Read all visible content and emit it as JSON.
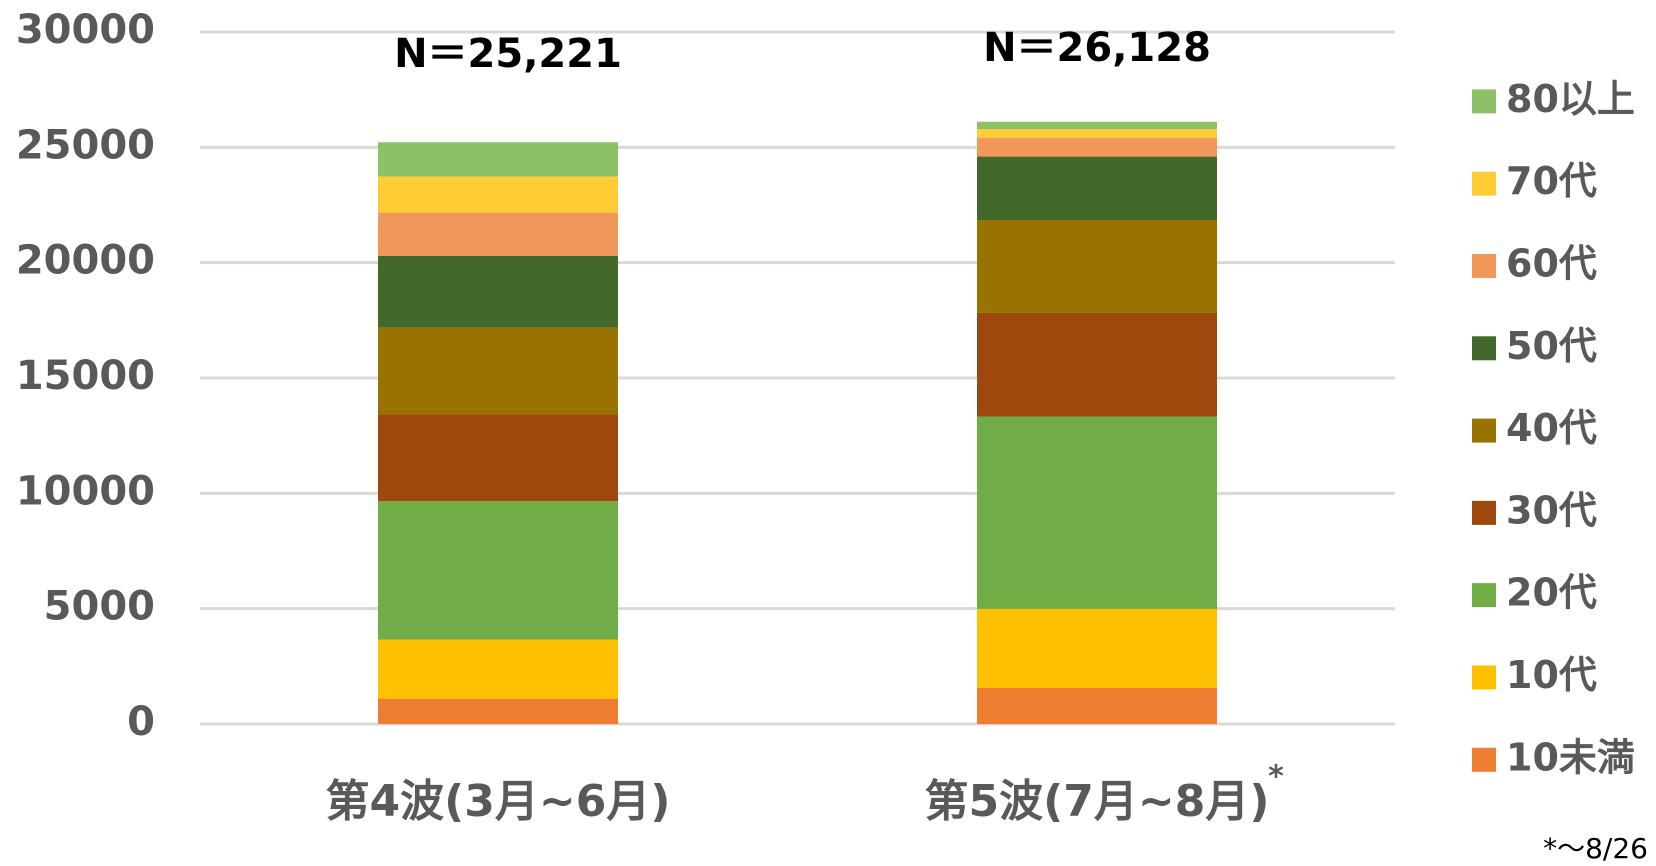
{
  "chart_data": {
    "type": "stacked_bar",
    "categories": [
      "第4波(3月~6月)",
      "第5波(7月~8月)"
    ],
    "series": [
      {
        "name": "10未満",
        "color": "#ED7D31",
        "values": [
          1100,
          1560
        ]
      },
      {
        "name": "10代",
        "color": "#FFC000",
        "values": [
          2560,
          3430
        ]
      },
      {
        "name": "20代",
        "color": "#70AD47",
        "values": [
          6000,
          8340
        ]
      },
      {
        "name": "30代",
        "color": "#9E480E",
        "values": [
          3760,
          4490
        ]
      },
      {
        "name": "40代",
        "color": "#997300",
        "values": [
          3760,
          4030
        ]
      },
      {
        "name": "50代",
        "color": "#43682B",
        "values": [
          3110,
          2750
        ]
      },
      {
        "name": "60代",
        "color": "#F1975A",
        "values": [
          1880,
          820
        ]
      },
      {
        "name": "70代",
        "color": "#FFCD33",
        "values": [
          1560,
          370
        ]
      },
      {
        "name": "80以上",
        "color": "#8CC168",
        "values": [
          1490,
          320
        ]
      }
    ],
    "annotations": [
      "N＝25,221",
      "N＝26,128",
      "*",
      "*～8/26"
    ],
    "ylim": [
      0,
      30000
    ],
    "yticks": [
      0,
      5000,
      10000,
      15000,
      20000,
      25000,
      30000
    ],
    "grid": true,
    "legend": "right"
  }
}
